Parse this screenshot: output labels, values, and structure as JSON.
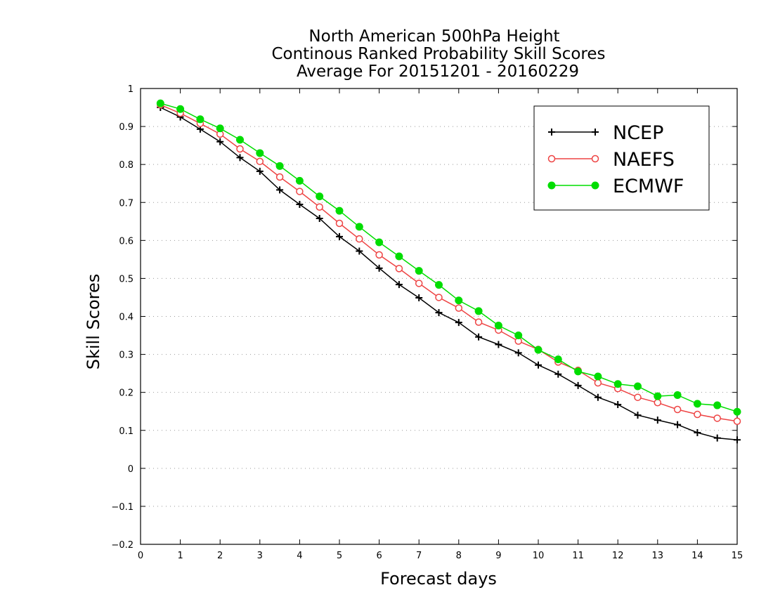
{
  "chart_data": {
    "type": "line",
    "title": [
      "North American 500hPa Height",
      "Continous Ranked Probability Skill Scores",
      "Average For 20151201 - 20160229"
    ],
    "xlabel": "Forecast days",
    "ylabel": "Skill Scores",
    "xlim": [
      0,
      15
    ],
    "ylim": [
      -0.2,
      1
    ],
    "xticks": [
      0,
      1,
      2,
      3,
      4,
      5,
      6,
      7,
      8,
      9,
      10,
      11,
      12,
      13,
      14,
      15
    ],
    "yticks": [
      -0.2,
      -0.1,
      0,
      0.1,
      0.2,
      0.3,
      0.4,
      0.5,
      0.6,
      0.7,
      0.8,
      0.9,
      1
    ],
    "ytick_labels": [
      "−0.2",
      "−0.1",
      "0",
      "0.1",
      "0.2",
      "0.3",
      "0.4",
      "0.5",
      "0.6",
      "0.7",
      "0.8",
      "0.9",
      "1"
    ],
    "grid": "horizontal-dotted",
    "legend_position": "top-right",
    "x": [
      0.5,
      1,
      1.5,
      2,
      2.5,
      3,
      3.5,
      4,
      4.5,
      5,
      5.5,
      6,
      6.5,
      7,
      7.5,
      8,
      8.5,
      9,
      9.5,
      10,
      10.5,
      11,
      11.5,
      12,
      12.5,
      13,
      13.5,
      14,
      14.5,
      15
    ],
    "series": [
      {
        "name": "NCEP",
        "color": "#000000",
        "marker": "plus",
        "values": [
          0.95,
          0.925,
          0.893,
          0.86,
          0.818,
          0.782,
          0.733,
          0.695,
          0.658,
          0.61,
          0.572,
          0.527,
          0.484,
          0.449,
          0.41,
          0.384,
          0.346,
          0.326,
          0.304,
          0.272,
          0.248,
          0.218,
          0.187,
          0.168,
          0.14,
          0.127,
          0.115,
          0.094,
          0.08,
          0.075
        ]
      },
      {
        "name": "NAEFS",
        "color": "#ee4444",
        "marker": "open-circle",
        "values": [
          0.957,
          0.935,
          0.908,
          0.88,
          0.841,
          0.808,
          0.767,
          0.729,
          0.688,
          0.645,
          0.604,
          0.562,
          0.526,
          0.487,
          0.45,
          0.422,
          0.385,
          0.364,
          0.335,
          0.313,
          0.28,
          0.258,
          0.225,
          0.21,
          0.187,
          0.173,
          0.155,
          0.142,
          0.132,
          0.124
        ]
      },
      {
        "name": "ECMWF",
        "color": "#00dd00",
        "marker": "filled-circle",
        "values": [
          0.961,
          0.946,
          0.919,
          0.895,
          0.865,
          0.83,
          0.796,
          0.757,
          0.716,
          0.678,
          0.636,
          0.595,
          0.558,
          0.52,
          0.483,
          0.442,
          0.414,
          0.376,
          0.35,
          0.312,
          0.287,
          0.255,
          0.242,
          0.222,
          0.216,
          0.19,
          0.193,
          0.17,
          0.166,
          0.149
        ]
      }
    ]
  }
}
